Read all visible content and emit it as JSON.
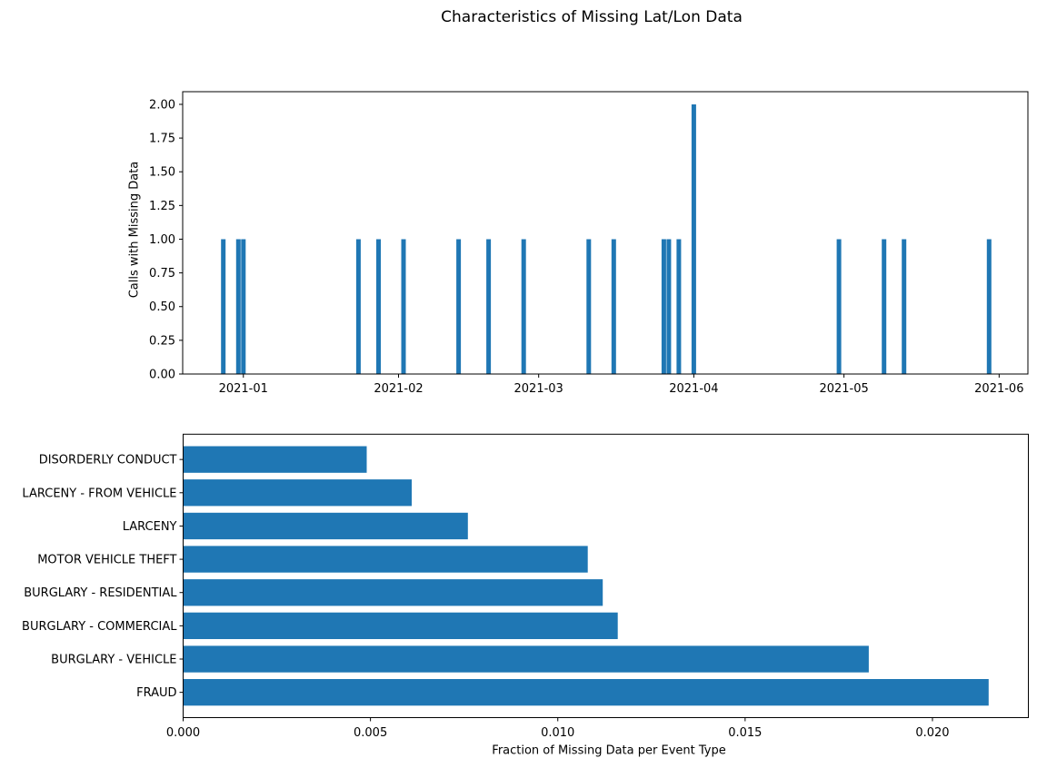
{
  "figure": {
    "title": "Characteristics of Missing Lat/Lon Data",
    "background_color": "#ffffff",
    "text_color": "#000000",
    "accent_color": "#1f77b4"
  },
  "chart_data": [
    {
      "type": "bar",
      "title": "",
      "xlabel": "",
      "ylabel": "Calls with Missing Data",
      "bar_color": "#1f77b4",
      "spine_color": "#000000",
      "grid": false,
      "legend": null,
      "x": [
        "2020-12-28",
        "2020-12-31",
        "2021-01-01",
        "2021-01-24",
        "2021-01-28",
        "2021-02-02",
        "2021-02-13",
        "2021-02-19",
        "2021-02-26",
        "2021-03-11",
        "2021-03-16",
        "2021-03-26",
        "2021-03-27",
        "2021-03-29",
        "2021-04-01",
        "2021-04-30",
        "2021-05-09",
        "2021-05-13",
        "2021-05-30"
      ],
      "values": [
        1,
        1,
        1,
        1,
        1,
        1,
        1,
        1,
        1,
        1,
        1,
        1,
        1,
        1,
        2,
        1,
        1,
        1,
        1
      ],
      "x_tick_labels": [
        "2021-01",
        "2021-02",
        "2021-03",
        "2021-04",
        "2021-05",
        "2021-06"
      ],
      "y_ticks": [
        0,
        0.25,
        0.5,
        0.75,
        1.0,
        1.25,
        1.5,
        1.75,
        2.0
      ],
      "y_tick_labels": [
        "0.00",
        "0.25",
        "0.50",
        "0.75",
        "1.00",
        "1.25",
        "1.50",
        "1.75",
        "2.00"
      ],
      "xlim": [
        "2020-12-19T21:00:00Z",
        "2021-06-06T18:00:00Z"
      ],
      "ylim": [
        0,
        2.094
      ]
    },
    {
      "type": "barh",
      "title": "",
      "xlabel": "Fraction of Missing Data per Event Type",
      "ylabel": "",
      "bar_color": "#1f77b4",
      "spine_color": "#000000",
      "grid": false,
      "legend": null,
      "categories": [
        "DISORDERLY CONDUCT",
        "LARCENY - FROM VEHICLE",
        "LARCENY",
        "MOTOR VEHICLE THEFT",
        "BURGLARY - RESIDENTIAL",
        "BURGLARY - COMMERCIAL",
        "BURGLARY - VEHICLE",
        "FRAUD"
      ],
      "values": [
        0.0049,
        0.0061,
        0.0076,
        0.0108,
        0.0112,
        0.0116,
        0.0183,
        0.0215
      ],
      "x_ticks": [
        0,
        0.005,
        0.01,
        0.015,
        0.02
      ],
      "x_tick_labels": [
        "0.000",
        "0.005",
        "0.010",
        "0.015",
        "0.020"
      ],
      "xlim": [
        0,
        0.02256
      ]
    }
  ]
}
